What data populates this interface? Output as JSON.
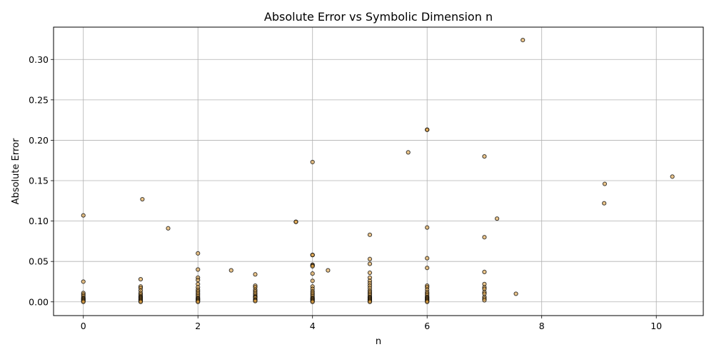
{
  "chart_data": {
    "type": "scatter",
    "title": "Absolute Error vs Symbolic Dimension n",
    "xlabel": "n",
    "ylabel": "Absolute Error",
    "xlim": [
      -0.52,
      10.82
    ],
    "ylim": [
      -0.017,
      0.34
    ],
    "xticks": [
      0,
      2,
      4,
      6,
      8,
      10
    ],
    "yticks": [
      0.0,
      0.05,
      0.1,
      0.15,
      0.2,
      0.25,
      0.3
    ],
    "xtick_labels": [
      "0",
      "2",
      "4",
      "6",
      "8",
      "10"
    ],
    "ytick_labels": [
      "0.00",
      "0.05",
      "0.10",
      "0.15",
      "0.20",
      "0.25",
      "0.30"
    ],
    "grid": true,
    "marker_fill": "#e0a040",
    "marker_edge": "#000000",
    "marker_alpha": 0.6,
    "points": [
      {
        "x": 0,
        "y": 0.107
      },
      {
        "x": 0,
        "y": 0.025
      },
      {
        "x": 0,
        "y": 0.011
      },
      {
        "x": 0,
        "y": 0.009
      },
      {
        "x": 0,
        "y": 0.007
      },
      {
        "x": 0,
        "y": 0.005
      },
      {
        "x": 0,
        "y": 0.004
      },
      {
        "x": 0,
        "y": 0.003
      },
      {
        "x": 0,
        "y": 0.002
      },
      {
        "x": 0,
        "y": 0.001
      },
      {
        "x": 0,
        "y": 0.0
      },
      {
        "x": 1.03,
        "y": 0.127
      },
      {
        "x": 1,
        "y": 0.028
      },
      {
        "x": 1,
        "y": 0.019
      },
      {
        "x": 1,
        "y": 0.017
      },
      {
        "x": 1,
        "y": 0.014
      },
      {
        "x": 1,
        "y": 0.011
      },
      {
        "x": 1,
        "y": 0.009
      },
      {
        "x": 1,
        "y": 0.007
      },
      {
        "x": 1,
        "y": 0.006
      },
      {
        "x": 1,
        "y": 0.005
      },
      {
        "x": 1,
        "y": 0.004
      },
      {
        "x": 1,
        "y": 0.003
      },
      {
        "x": 1,
        "y": 0.002
      },
      {
        "x": 1,
        "y": 0.001
      },
      {
        "x": 1,
        "y": 0.0
      },
      {
        "x": 1.48,
        "y": 0.091
      },
      {
        "x": 2,
        "y": 0.06
      },
      {
        "x": 2,
        "y": 0.04
      },
      {
        "x": 2,
        "y": 0.03
      },
      {
        "x": 2,
        "y": 0.027
      },
      {
        "x": 2,
        "y": 0.022
      },
      {
        "x": 2,
        "y": 0.018
      },
      {
        "x": 2,
        "y": 0.015
      },
      {
        "x": 2,
        "y": 0.013
      },
      {
        "x": 2,
        "y": 0.011
      },
      {
        "x": 2,
        "y": 0.009
      },
      {
        "x": 2,
        "y": 0.007
      },
      {
        "x": 2,
        "y": 0.005
      },
      {
        "x": 2,
        "y": 0.004
      },
      {
        "x": 2,
        "y": 0.003
      },
      {
        "x": 2,
        "y": 0.002
      },
      {
        "x": 2,
        "y": 0.001
      },
      {
        "x": 2,
        "y": 0.0
      },
      {
        "x": 2.58,
        "y": 0.039
      },
      {
        "x": 3,
        "y": 0.034
      },
      {
        "x": 3,
        "y": 0.02
      },
      {
        "x": 3,
        "y": 0.018
      },
      {
        "x": 3,
        "y": 0.015
      },
      {
        "x": 3,
        "y": 0.013
      },
      {
        "x": 3,
        "y": 0.011
      },
      {
        "x": 3,
        "y": 0.009
      },
      {
        "x": 3,
        "y": 0.007
      },
      {
        "x": 3,
        "y": 0.006
      },
      {
        "x": 3,
        "y": 0.005
      },
      {
        "x": 3,
        "y": 0.003
      },
      {
        "x": 3,
        "y": 0.002
      },
      {
        "x": 3,
        "y": 0.001
      },
      {
        "x": 3.71,
        "y": 0.099
      },
      {
        "x": 3.71,
        "y": 0.099
      },
      {
        "x": 4,
        "y": 0.173
      },
      {
        "x": 4,
        "y": 0.058
      },
      {
        "x": 4,
        "y": 0.058
      },
      {
        "x": 4,
        "y": 0.046
      },
      {
        "x": 4,
        "y": 0.045
      },
      {
        "x": 4,
        "y": 0.044
      },
      {
        "x": 4,
        "y": 0.035
      },
      {
        "x": 4,
        "y": 0.026
      },
      {
        "x": 4,
        "y": 0.019
      },
      {
        "x": 4,
        "y": 0.016
      },
      {
        "x": 4,
        "y": 0.013
      },
      {
        "x": 4,
        "y": 0.011
      },
      {
        "x": 4,
        "y": 0.009
      },
      {
        "x": 4,
        "y": 0.007
      },
      {
        "x": 4,
        "y": 0.005
      },
      {
        "x": 4,
        "y": 0.004
      },
      {
        "x": 4,
        "y": 0.003
      },
      {
        "x": 4,
        "y": 0.002
      },
      {
        "x": 4,
        "y": 0.001
      },
      {
        "x": 4,
        "y": 0.0
      },
      {
        "x": 4.27,
        "y": 0.039
      },
      {
        "x": 5,
        "y": 0.083
      },
      {
        "x": 5,
        "y": 0.053
      },
      {
        "x": 5,
        "y": 0.047
      },
      {
        "x": 5,
        "y": 0.036
      },
      {
        "x": 5,
        "y": 0.03
      },
      {
        "x": 5,
        "y": 0.026
      },
      {
        "x": 5,
        "y": 0.023
      },
      {
        "x": 5,
        "y": 0.02
      },
      {
        "x": 5,
        "y": 0.017
      },
      {
        "x": 5,
        "y": 0.014
      },
      {
        "x": 5,
        "y": 0.012
      },
      {
        "x": 5,
        "y": 0.01
      },
      {
        "x": 5,
        "y": 0.008
      },
      {
        "x": 5,
        "y": 0.006
      },
      {
        "x": 5,
        "y": 0.005
      },
      {
        "x": 5,
        "y": 0.004
      },
      {
        "x": 5,
        "y": 0.003
      },
      {
        "x": 5,
        "y": 0.002
      },
      {
        "x": 5,
        "y": 0.001
      },
      {
        "x": 5,
        "y": 0.0
      },
      {
        "x": 5.67,
        "y": 0.185
      },
      {
        "x": 6,
        "y": 0.213
      },
      {
        "x": 6,
        "y": 0.213
      },
      {
        "x": 6,
        "y": 0.092
      },
      {
        "x": 6,
        "y": 0.054
      },
      {
        "x": 6,
        "y": 0.042
      },
      {
        "x": 6,
        "y": 0.02
      },
      {
        "x": 6,
        "y": 0.018
      },
      {
        "x": 6,
        "y": 0.015
      },
      {
        "x": 6,
        "y": 0.012
      },
      {
        "x": 6,
        "y": 0.01
      },
      {
        "x": 6,
        "y": 0.008
      },
      {
        "x": 6,
        "y": 0.006
      },
      {
        "x": 6,
        "y": 0.005
      },
      {
        "x": 6,
        "y": 0.004
      },
      {
        "x": 6,
        "y": 0.003
      },
      {
        "x": 6,
        "y": 0.002
      },
      {
        "x": 6,
        "y": 0.001
      },
      {
        "x": 6,
        "y": 0.0
      },
      {
        "x": 7,
        "y": 0.18
      },
      {
        "x": 7,
        "y": 0.08
      },
      {
        "x": 7,
        "y": 0.037
      },
      {
        "x": 7,
        "y": 0.022
      },
      {
        "x": 7,
        "y": 0.018
      },
      {
        "x": 7,
        "y": 0.016
      },
      {
        "x": 7,
        "y": 0.012
      },
      {
        "x": 7,
        "y": 0.01
      },
      {
        "x": 7,
        "y": 0.006
      },
      {
        "x": 7,
        "y": 0.004
      },
      {
        "x": 7,
        "y": 0.002
      },
      {
        "x": 7.22,
        "y": 0.103
      },
      {
        "x": 7.55,
        "y": 0.01
      },
      {
        "x": 7.67,
        "y": 0.324
      },
      {
        "x": 9.1,
        "y": 0.146
      },
      {
        "x": 9.09,
        "y": 0.122
      },
      {
        "x": 10.28,
        "y": 0.155
      }
    ]
  }
}
